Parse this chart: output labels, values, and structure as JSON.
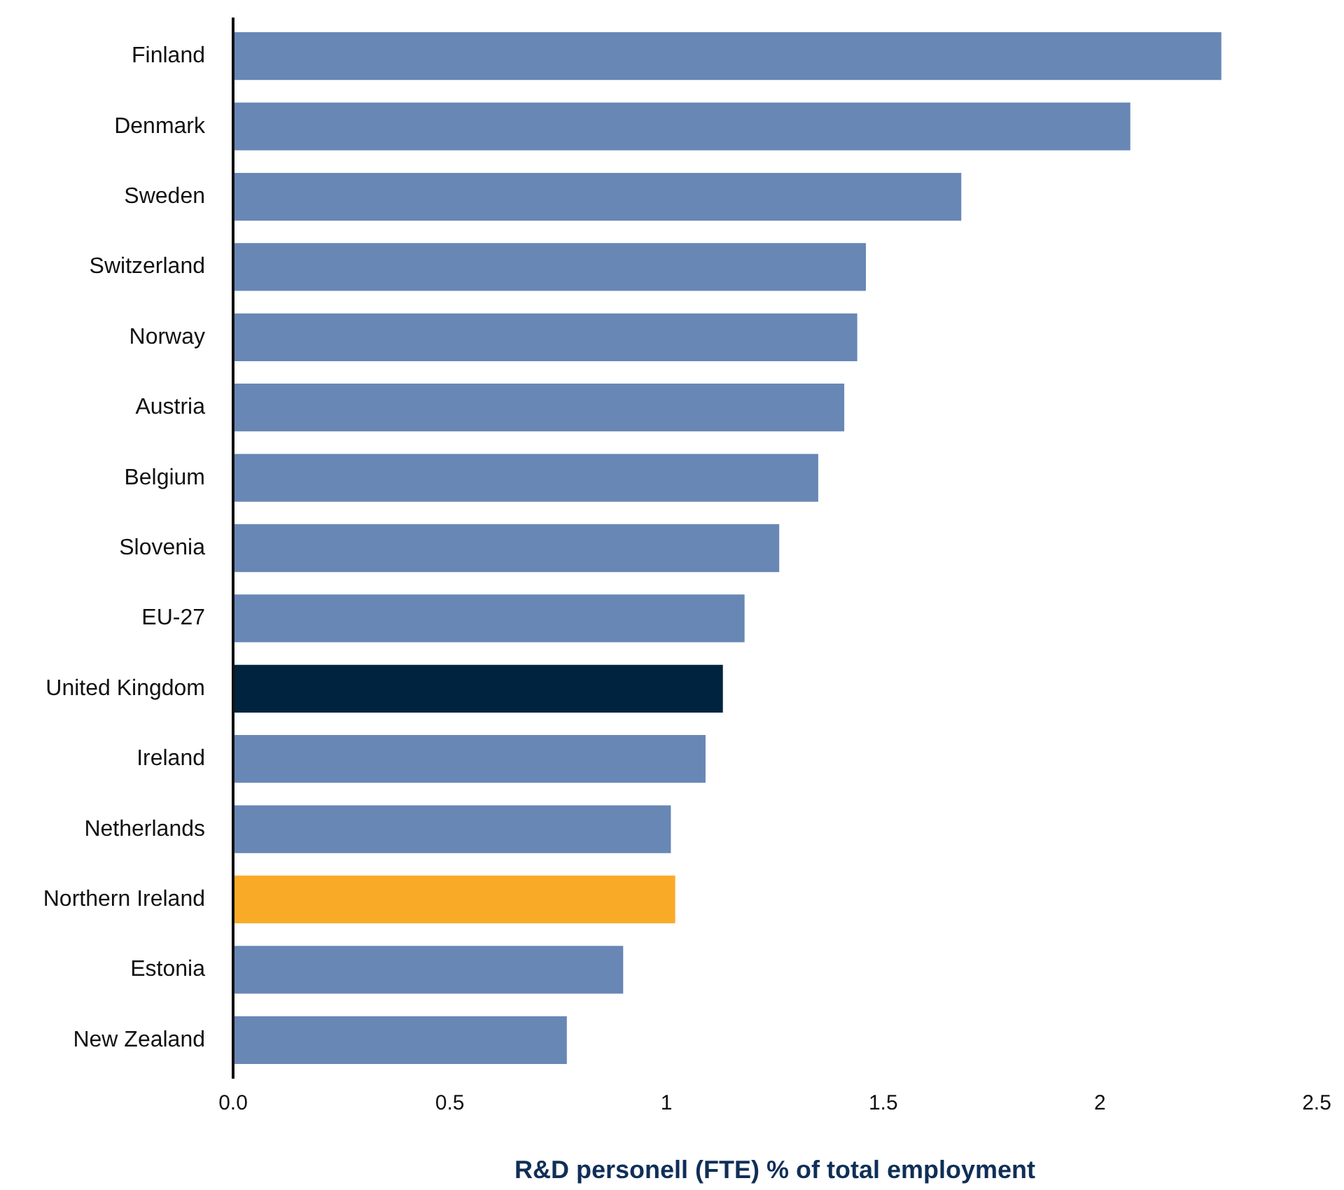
{
  "chart_data": {
    "type": "bar",
    "orientation": "horizontal",
    "xlabel": "R&D personell (FTE) % of total employment",
    "categories": [
      "Finland",
      "Denmark",
      "Sweden",
      "Switzerland",
      "Norway",
      "Austria",
      "Belgium",
      "Slovenia",
      "EU-27",
      "United Kingdom",
      "Ireland",
      "Netherlands",
      "Northern Ireland",
      "Estonia",
      "New Zealand"
    ],
    "values": [
      2.28,
      2.07,
      1.68,
      1.46,
      1.44,
      1.41,
      1.35,
      1.26,
      1.18,
      1.13,
      1.09,
      1.01,
      1.02,
      0.9,
      0.77
    ],
    "colors": [
      "#6887b5",
      "#6887b5",
      "#6887b5",
      "#6887b5",
      "#6887b5",
      "#6887b5",
      "#6887b5",
      "#6887b5",
      "#6887b5",
      "#00243f",
      "#6887b5",
      "#6887b5",
      "#f9ab28",
      "#6887b5",
      "#6887b5"
    ],
    "xlim": [
      0,
      2.5
    ],
    "xticks": [
      {
        "value": 0,
        "label": "0.0"
      },
      0.5,
      1,
      1.5,
      2,
      2.5
    ],
    "grid": false
  }
}
